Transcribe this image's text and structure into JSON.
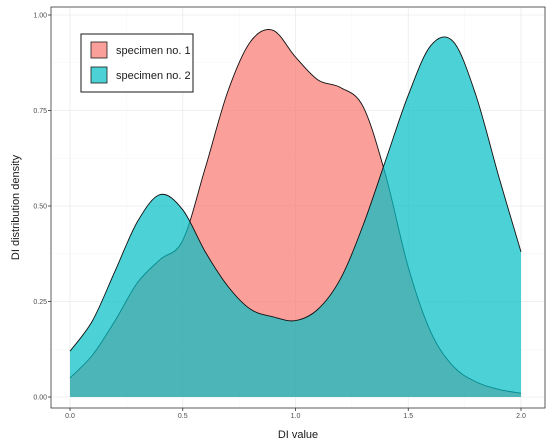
{
  "chart_data": {
    "type": "area",
    "xlabel": "DI value",
    "ylabel": "DI distribution density",
    "xlim": [
      0.0,
      2.0
    ],
    "ylim": [
      0.0,
      1.0
    ],
    "x_ticks": [
      "0.0",
      "0.5",
      "1.0",
      "1.5",
      "2.0"
    ],
    "y_ticks": [
      "0.00",
      "0.25",
      "0.50",
      "0.75",
      "1.00"
    ],
    "grid": true,
    "legend_position": "top-left",
    "x": [
      0.0,
      0.1,
      0.2,
      0.3,
      0.4,
      0.5,
      0.6,
      0.7,
      0.8,
      0.9,
      1.0,
      1.1,
      1.2,
      1.3,
      1.4,
      1.5,
      1.6,
      1.7,
      1.8,
      1.9,
      2.0
    ],
    "series": [
      {
        "name": "specimen no. 1",
        "color": "#F8766D",
        "values": [
          0.05,
          0.11,
          0.2,
          0.3,
          0.36,
          0.41,
          0.6,
          0.8,
          0.93,
          0.96,
          0.89,
          0.83,
          0.81,
          0.76,
          0.58,
          0.34,
          0.17,
          0.08,
          0.04,
          0.02,
          0.01
        ]
      },
      {
        "name": "specimen no. 2",
        "color": "#00BFC4",
        "values": [
          0.12,
          0.2,
          0.33,
          0.46,
          0.53,
          0.49,
          0.38,
          0.29,
          0.23,
          0.21,
          0.2,
          0.23,
          0.31,
          0.45,
          0.62,
          0.79,
          0.92,
          0.93,
          0.79,
          0.58,
          0.38
        ]
      }
    ]
  }
}
